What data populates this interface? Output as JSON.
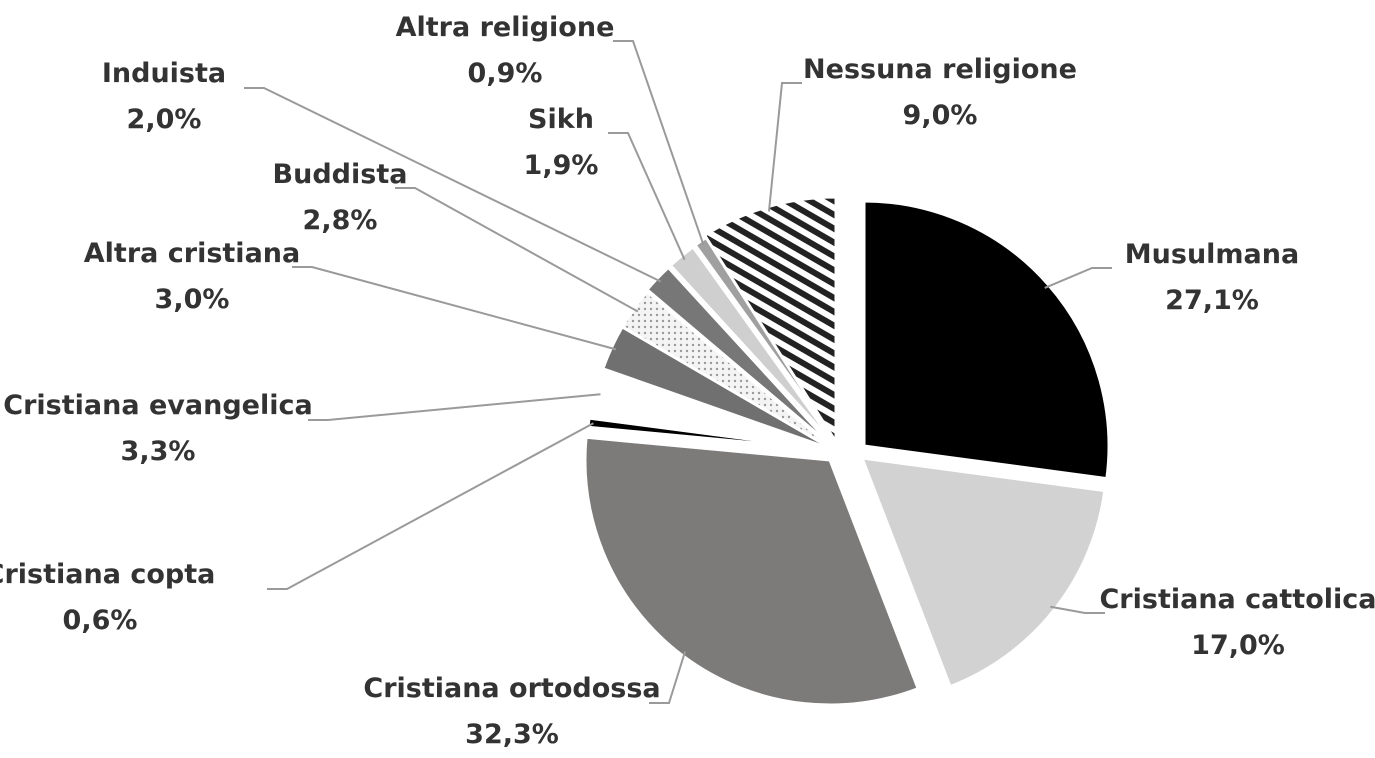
{
  "chart_data": {
    "type": "pie",
    "title": "",
    "slices": [
      {
        "label": "Musulmana",
        "value": 27.1,
        "value_label": "27,1%",
        "fill": "#000000",
        "pattern": "solid"
      },
      {
        "label": "Cristiana cattolica",
        "value": 17.0,
        "value_label": "17,0%",
        "fill": "#d2d2d2",
        "pattern": "solid"
      },
      {
        "label": "Cristiana ortodossa",
        "value": 32.3,
        "value_label": "32,3%",
        "fill": "#7d7a7a",
        "pattern": "solid"
      },
      {
        "label": "Cristiana copta",
        "value": 0.6,
        "value_label": "0,6%",
        "fill": "#000000",
        "pattern": "solid"
      },
      {
        "label": "Cristiana evangelica",
        "value": 3.3,
        "value_label": "3,3%",
        "fill": "#ffffff",
        "pattern": "solid"
      },
      {
        "label": "Altra cristiana",
        "value": 3.0,
        "value_label": "3,0%",
        "fill": "#707070",
        "pattern": "solid"
      },
      {
        "label": "Buddista",
        "value": 2.8,
        "value_label": "2,8%",
        "fill": "#f2f2f2",
        "pattern": "dots"
      },
      {
        "label": "Induista",
        "value": 2.0,
        "value_label": "2,0%",
        "fill": "#777777",
        "pattern": "solid"
      },
      {
        "label": "Sikh",
        "value": 1.9,
        "value_label": "1,9%",
        "fill": "#cfcfcf",
        "pattern": "solid"
      },
      {
        "label": "Altra religione",
        "value": 0.9,
        "value_label": "0,9%",
        "fill": "#a0a0a0",
        "pattern": "solid"
      },
      {
        "label": "Nessuna religione",
        "value": 9.0,
        "value_label": "9,0%",
        "fill": "#ffffff",
        "pattern": "diagonal-stripes"
      }
    ],
    "start_angle_deg": 0,
    "direction": "clockwise",
    "exploded": true,
    "legend": "none",
    "label_style": "outside labels with leader lines"
  }
}
